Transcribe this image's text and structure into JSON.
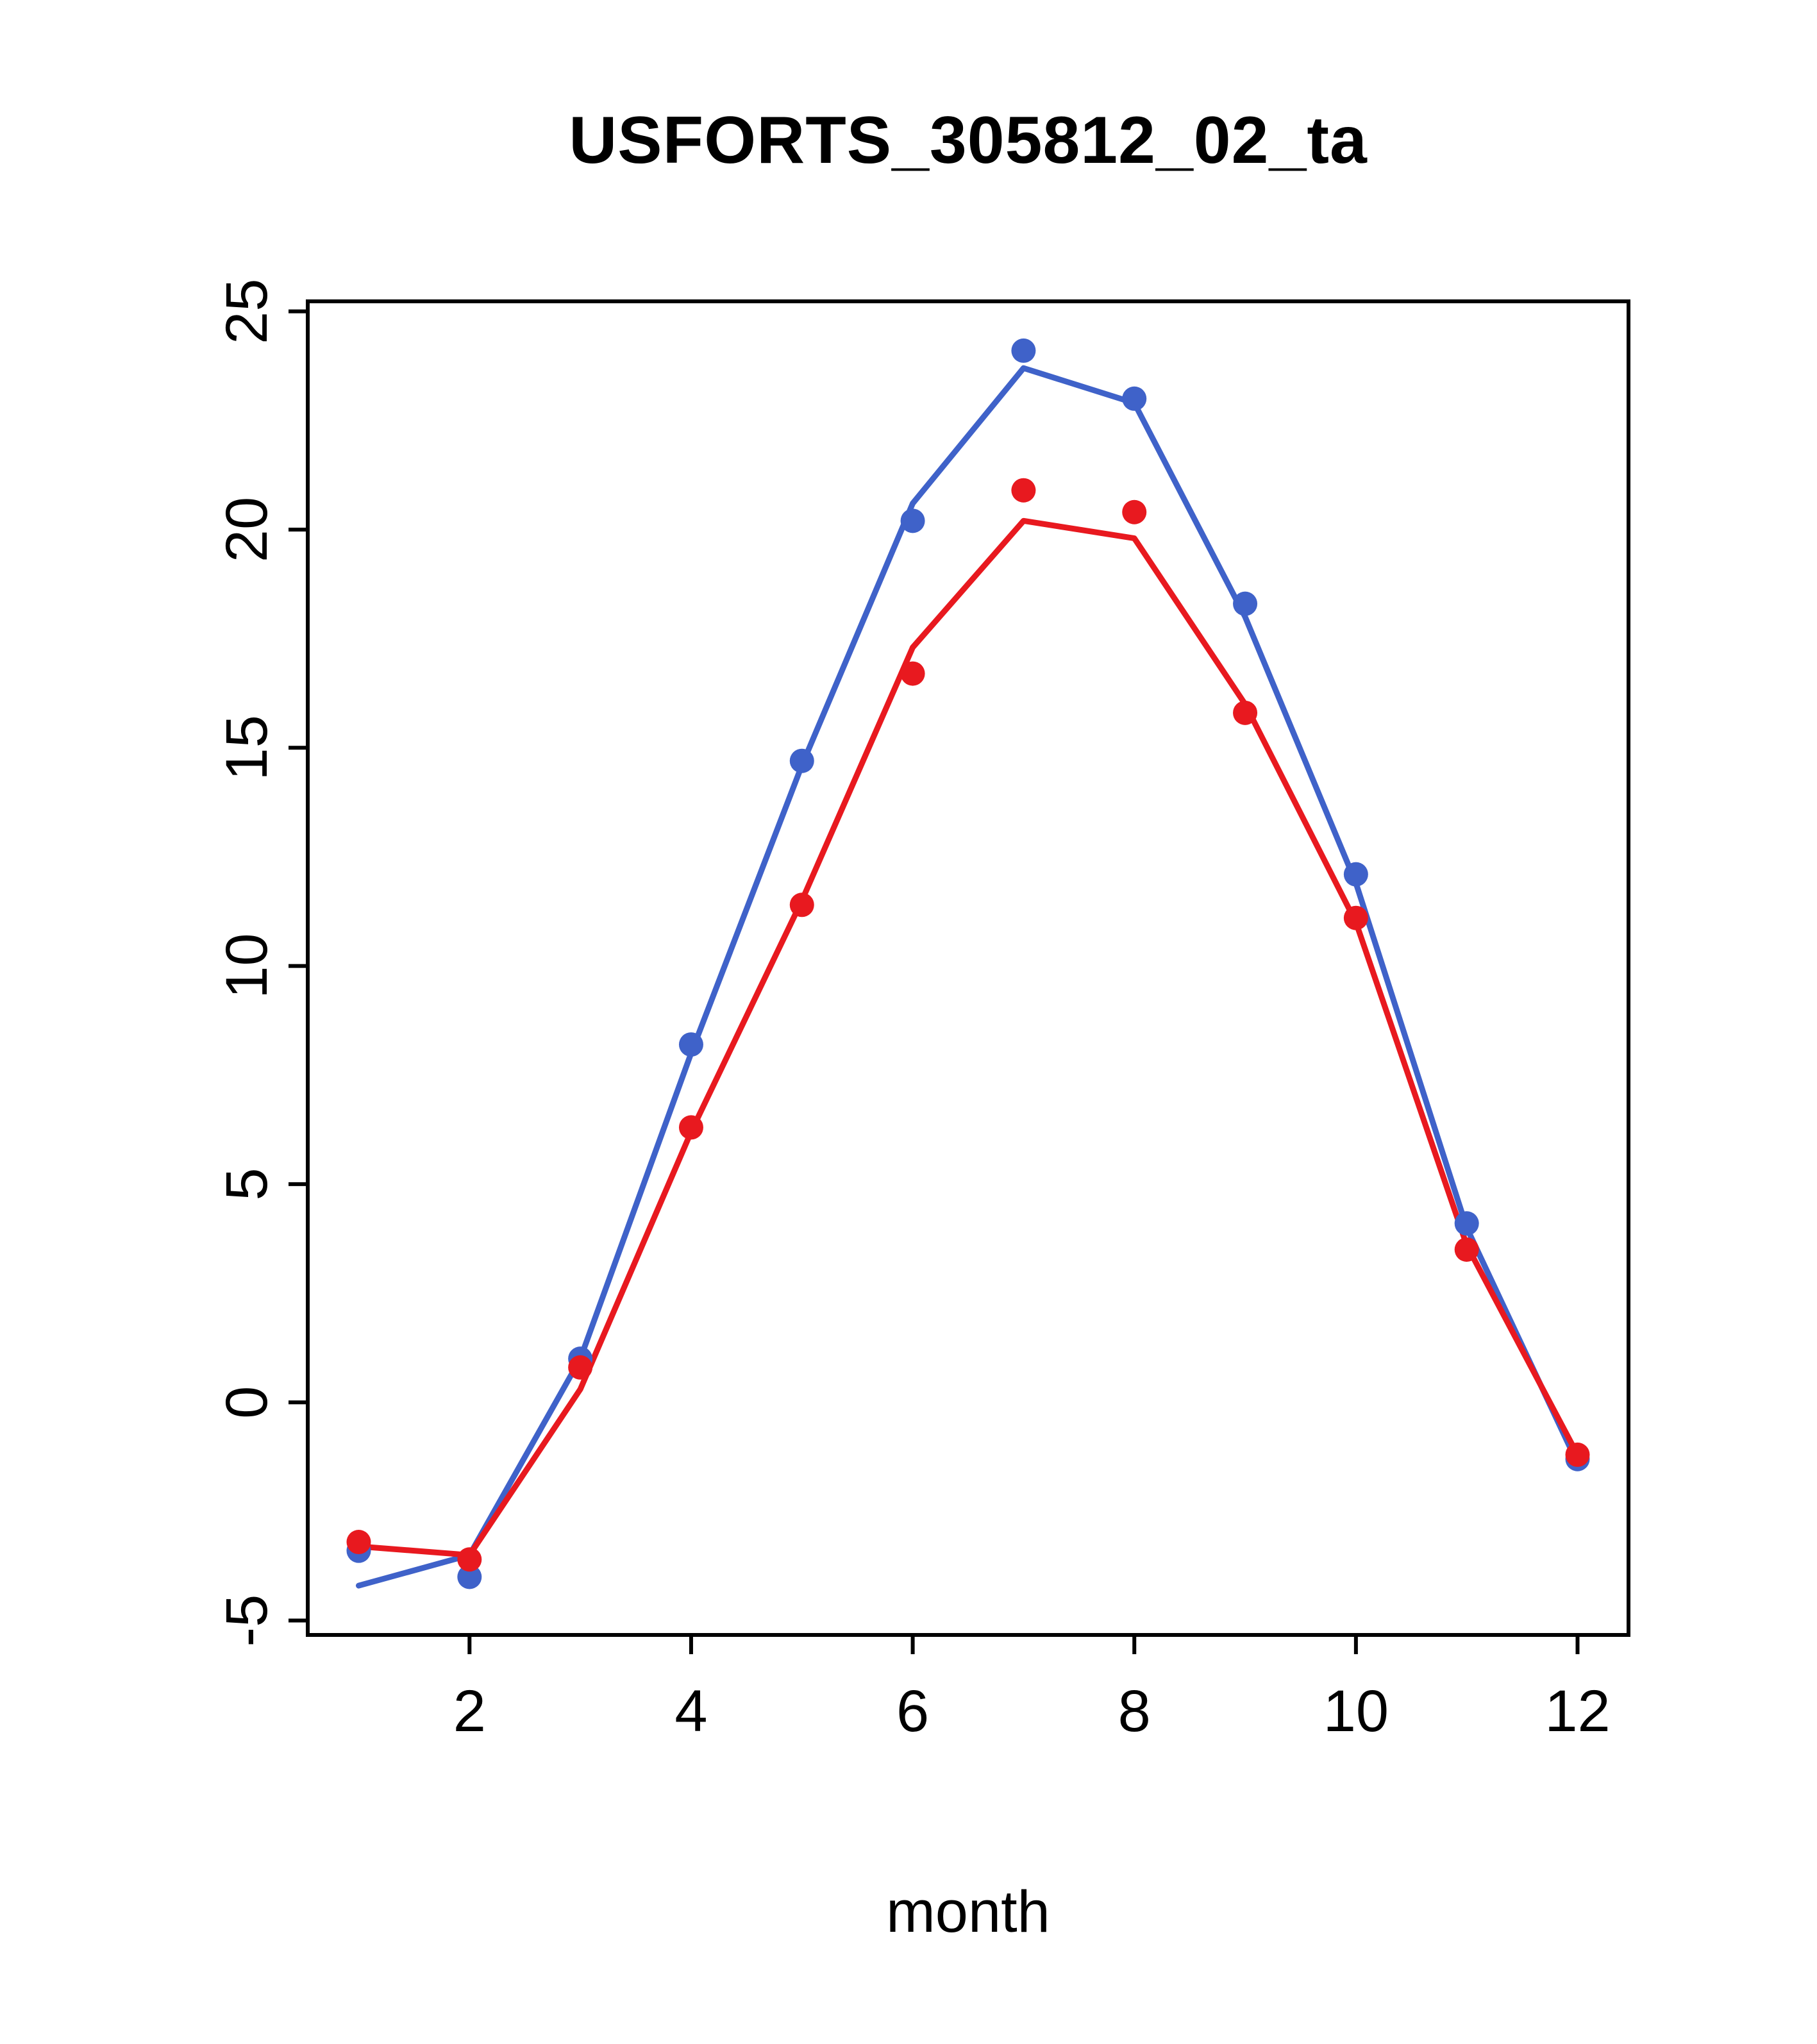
{
  "chart_data": {
    "type": "line",
    "title": "USFORTS_305812_02_ta",
    "xlabel": "month",
    "ylabel": "",
    "grid": false,
    "legend": "none",
    "xlim": [
      0.54,
      12.46
    ],
    "ylim": [
      -5.33,
      25.23
    ],
    "x_ticks": [
      2,
      4,
      6,
      8,
      10,
      12
    ],
    "y_ticks": [
      -5,
      0,
      5,
      10,
      15,
      20,
      25
    ],
    "x": [
      1,
      2,
      3,
      4,
      5,
      6,
      7,
      8,
      9,
      10,
      11,
      12
    ],
    "series": [
      {
        "name": "series-blue",
        "color": "#3f62c9",
        "marker": "filled-circle",
        "points": [
          -3.4,
          -4.0,
          1.0,
          8.2,
          14.7,
          20.2,
          24.1,
          23.0,
          18.3,
          12.1,
          4.1,
          -1.3
        ],
        "line": [
          -4.2,
          -3.5,
          1.0,
          8.0,
          14.6,
          20.6,
          23.7,
          22.9,
          18.0,
          11.9,
          4.0,
          -1.4
        ]
      },
      {
        "name": "series-red",
        "color": "#e8191f",
        "marker": "filled-circle",
        "points": [
          -3.2,
          -3.6,
          0.8,
          6.3,
          11.4,
          16.7,
          20.9,
          20.4,
          15.8,
          11.1,
          3.5,
          -1.2
        ],
        "line": [
          -3.3,
          -3.5,
          0.3,
          6.2,
          11.5,
          17.3,
          20.2,
          19.8,
          16.0,
          11.0,
          3.6,
          -1.2
        ]
      }
    ]
  },
  "style": {
    "axis_color": "#000000",
    "background": "#ffffff"
  }
}
